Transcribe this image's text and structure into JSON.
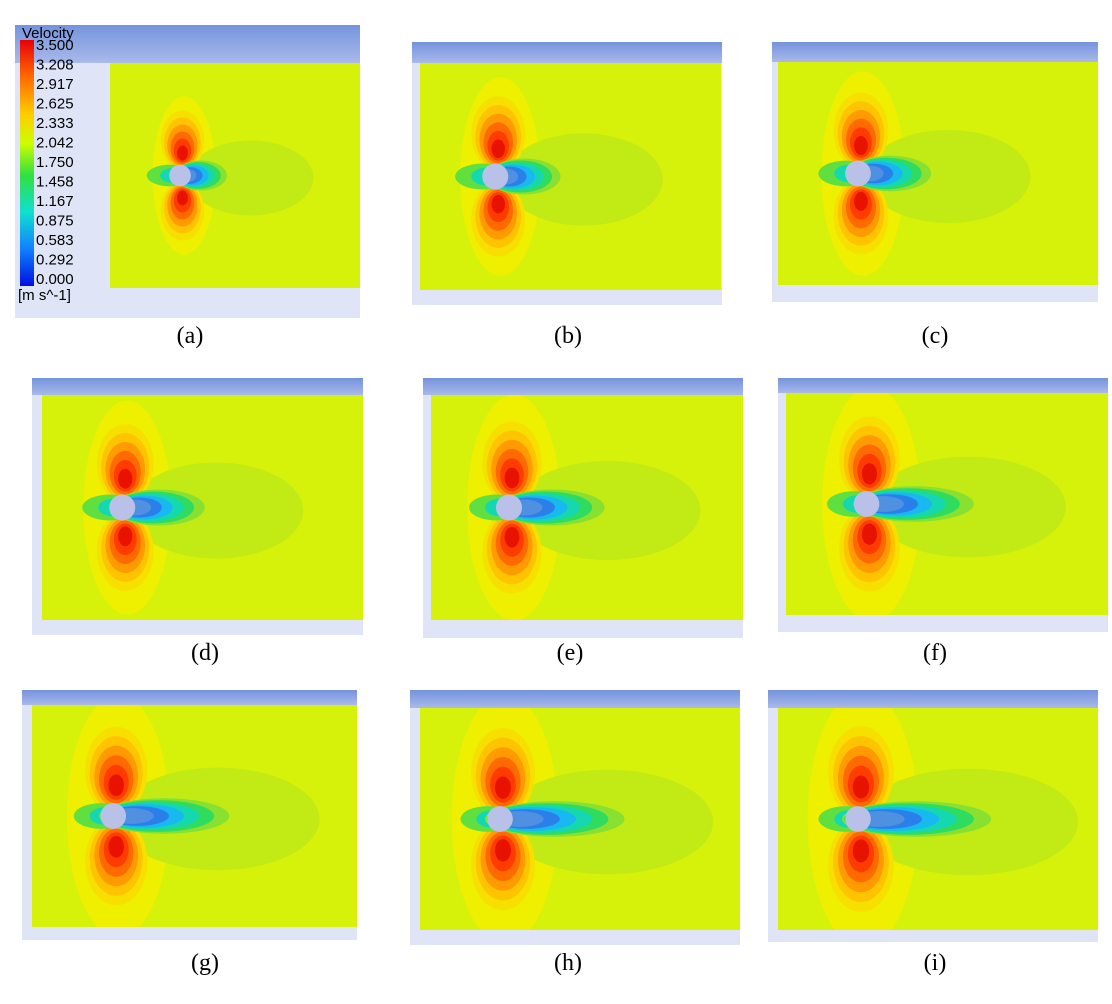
{
  "legend": {
    "title": "Velocity",
    "labels": [
      "3.500",
      "3.208",
      "2.917",
      "2.625",
      "2.333",
      "2.042",
      "1.750",
      "1.458",
      "1.167",
      "0.875",
      "0.583",
      "0.292",
      "0.000"
    ],
    "unit": "[m s^-1]"
  },
  "panels": [
    {
      "caption": "(a)"
    },
    {
      "caption": "(b)"
    },
    {
      "caption": "(c)"
    },
    {
      "caption": "(d)"
    },
    {
      "caption": "(e)"
    },
    {
      "caption": "(f)"
    },
    {
      "caption": "(g)"
    },
    {
      "caption": "(h)"
    },
    {
      "caption": "(i)"
    }
  ]
}
